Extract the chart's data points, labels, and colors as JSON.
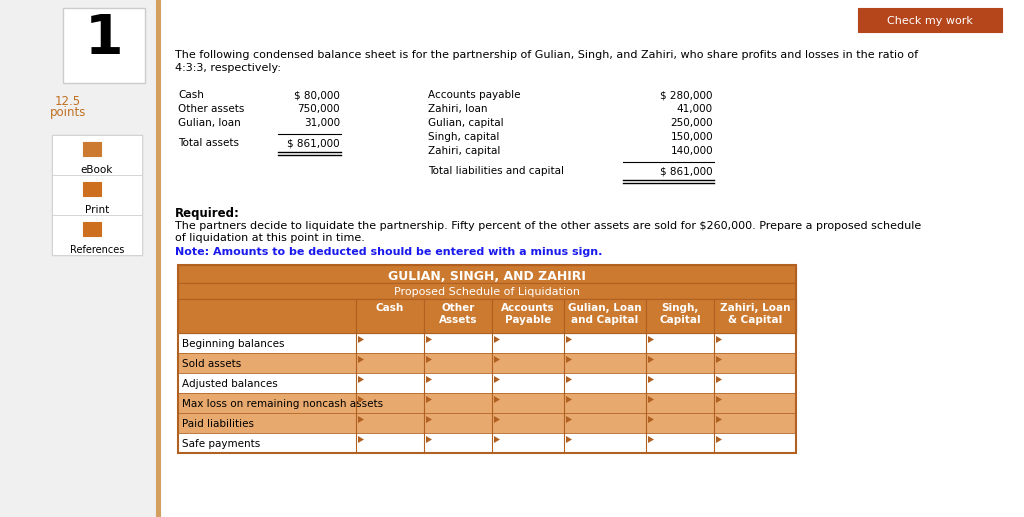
{
  "bg_color": "#f0f0f0",
  "white": "#ffffff",
  "orange_btn": "#b5451b",
  "orange_header": "#cc7a30",
  "orange_row_alt": "#e8a96e",
  "orange_border": "#b06020",
  "text_dark": "#000000",
  "text_blue": "#1a1aee",
  "question_number": "1",
  "points_label": "12.5\npoints",
  "check_btn_text": "Check my work",
  "intro_line1": "The following condensed balance sheet is for the partnership of Gulian, Singh, and Zahiri, who share profits and losses in the ratio of",
  "intro_line2": "4:3:3, respectively:",
  "balance_sheet": {
    "left_items": [
      "Cash",
      "Other assets",
      "Gulian, loan"
    ],
    "left_values": [
      "$ 80,000",
      "750,000",
      "31,000"
    ],
    "left_total_label": "Total assets",
    "left_total_value": "$ 861,000",
    "right_items": [
      "Accounts payable",
      "Zahiri, loan",
      "Gulian, capital",
      "Singh, capital",
      "Zahiri, capital"
    ],
    "right_values": [
      "$ 280,000",
      "41,000",
      "250,000",
      "150,000",
      "140,000"
    ],
    "right_total_label": "Total liabilities and capital",
    "right_total_value": "$ 861,000"
  },
  "required_text": "Required:",
  "required_body1": "The partners decide to liquidate the partnership. Fifty percent of the other assets are sold for $260,000. Prepare a proposed schedule",
  "required_body2": "of liquidation at this point in time.",
  "note_text": "Note: Amounts to be deducted should be entered with a minus sign.",
  "table_title": "GULIAN, SINGH, AND ZAHIRI",
  "table_subtitle": "Proposed Schedule of Liquidation",
  "col_headers": [
    "Cash",
    "Other\nAssets",
    "Accounts\nPayable",
    "Gulian, Loan\nand Capital",
    "Singh,\nCapital",
    "Zahiri, Loan\n& Capital"
  ],
  "row_labels": [
    "Beginning balances",
    "Sold assets",
    "Adjusted balances",
    "Max loss on remaining noncash assets",
    "Paid liabilities",
    "Safe payments"
  ],
  "ebook_label": "eBook",
  "print_label": "Print",
  "references_label": "References",
  "left_sidebar_color": "#d4a060"
}
